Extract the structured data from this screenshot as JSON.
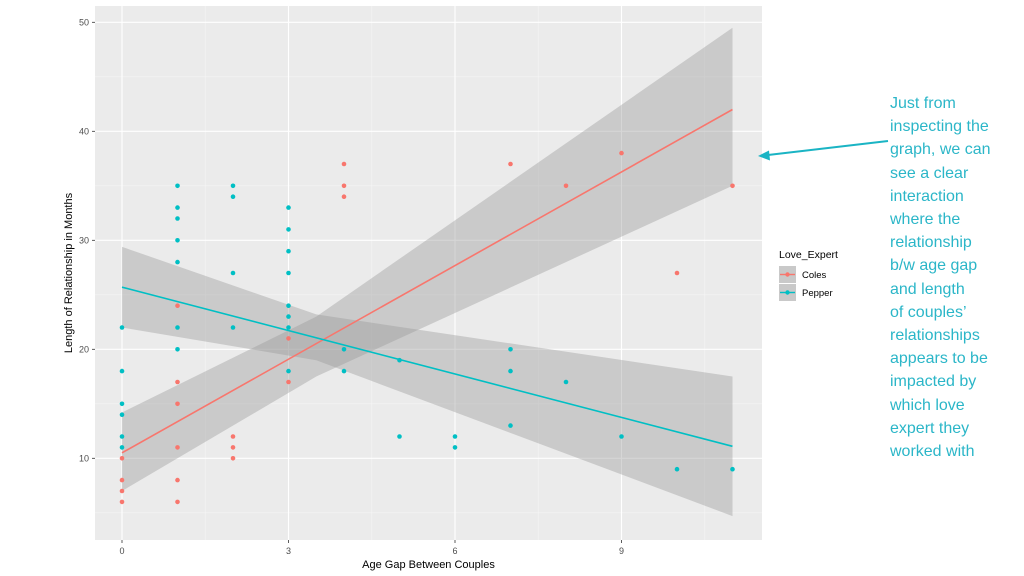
{
  "chart_data": {
    "type": "scatter",
    "xlabel": "Age Gap Between Couples",
    "ylabel": "Length of Relationship in Months",
    "xlim": [
      -0.5,
      11.5
    ],
    "ylim": [
      3,
      53
    ],
    "x_ticks": [
      0,
      3,
      6,
      9
    ],
    "y_ticks": [
      10,
      20,
      30,
      40,
      50
    ],
    "grid": true,
    "legend": {
      "title": "Love_Expert",
      "position": "right"
    },
    "series": [
      {
        "name": "Coles",
        "color": "#f8766d",
        "points": [
          [
            0,
            6
          ],
          [
            0,
            7
          ],
          [
            0,
            8
          ],
          [
            0,
            10
          ],
          [
            1,
            6
          ],
          [
            1,
            8
          ],
          [
            1,
            11
          ],
          [
            1,
            15
          ],
          [
            1,
            17
          ],
          [
            1,
            24
          ],
          [
            2,
            10
          ],
          [
            2,
            11
          ],
          [
            2,
            12
          ],
          [
            3,
            17
          ],
          [
            3,
            21
          ],
          [
            4,
            34
          ],
          [
            4,
            35
          ],
          [
            4,
            37
          ],
          [
            7,
            37
          ],
          [
            8,
            35
          ],
          [
            9,
            38
          ],
          [
            10,
            27
          ],
          [
            11,
            35
          ]
        ],
        "fit": {
          "x": [
            0,
            11
          ],
          "y": [
            10.5,
            42.0
          ]
        },
        "ci": {
          "x": [
            0,
            3.5,
            11
          ],
          "lower": [
            7.0,
            17.5,
            35.0
          ],
          "upper": [
            14.2,
            23.0,
            49.5
          ]
        }
      },
      {
        "name": "Pepper",
        "color": "#00bfc4",
        "points": [
          [
            0,
            11
          ],
          [
            0,
            12
          ],
          [
            0,
            14
          ],
          [
            0,
            15
          ],
          [
            0,
            18
          ],
          [
            0,
            22
          ],
          [
            1,
            20
          ],
          [
            1,
            22
          ],
          [
            1,
            28
          ],
          [
            1,
            30
          ],
          [
            1,
            32
          ],
          [
            1,
            33
          ],
          [
            1,
            35
          ],
          [
            2,
            22
          ],
          [
            2,
            27
          ],
          [
            2,
            34
          ],
          [
            2,
            35
          ],
          [
            3,
            18
          ],
          [
            3,
            22
          ],
          [
            3,
            23
          ],
          [
            3,
            24
          ],
          [
            3,
            27
          ],
          [
            3,
            29
          ],
          [
            3,
            31
          ],
          [
            3,
            33
          ],
          [
            4,
            18
          ],
          [
            4,
            20
          ],
          [
            5,
            12
          ],
          [
            5,
            19
          ],
          [
            6,
            11
          ],
          [
            6,
            12
          ],
          [
            7,
            13
          ],
          [
            7,
            18
          ],
          [
            7,
            20
          ],
          [
            8,
            17
          ],
          [
            9,
            12
          ],
          [
            10,
            9
          ],
          [
            11,
            9
          ]
        ],
        "fit": {
          "x": [
            0,
            11
          ],
          "y": [
            25.7,
            11.1
          ]
        },
        "ci": {
          "x": [
            0,
            3.5,
            11
          ],
          "lower": [
            22.0,
            19.0,
            4.7
          ],
          "upper": [
            29.4,
            23.2,
            17.5
          ]
        }
      }
    ]
  },
  "annotation": {
    "lines": [
      "Just from",
      "inspecting the",
      "graph, we can",
      "see a clear",
      "interaction",
      "where the",
      "relationship",
      "b/w age gap",
      "and length",
      "of couples’",
      "relationships",
      "appears to be",
      "impacted by",
      "which love",
      "expert they",
      "worked with"
    ],
    "color": "#2bb6c8",
    "arrow_color": "#1ab4c4"
  }
}
